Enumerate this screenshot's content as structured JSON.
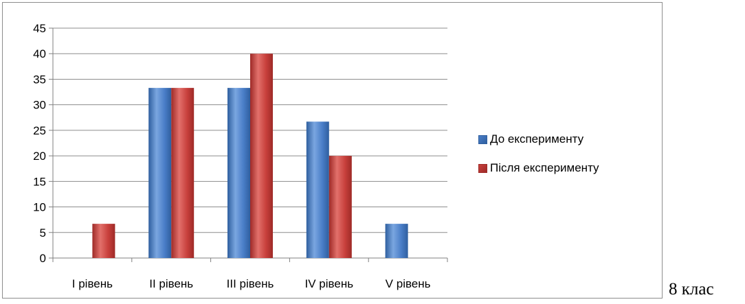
{
  "chart_data": {
    "type": "bar",
    "categories": [
      "I рівень",
      "II рівень",
      "III рівень",
      "IV рівень",
      "V рівень"
    ],
    "series": [
      {
        "name": "До експерименту",
        "values": [
          0,
          33.3,
          33.3,
          26.7,
          6.7
        ],
        "color": "#4a7ec8"
      },
      {
        "name": "Після експерименту",
        "values": [
          6.7,
          33.3,
          40,
          20,
          0
        ],
        "color": "#c8403c"
      }
    ],
    "ylim": [
      0,
      45
    ],
    "yticks": [
      "0",
      "5",
      "10",
      "15",
      "20",
      "25",
      "30",
      "35",
      "40",
      "45"
    ],
    "grid": true,
    "legend_position": "right"
  },
  "caption": "8 клас"
}
